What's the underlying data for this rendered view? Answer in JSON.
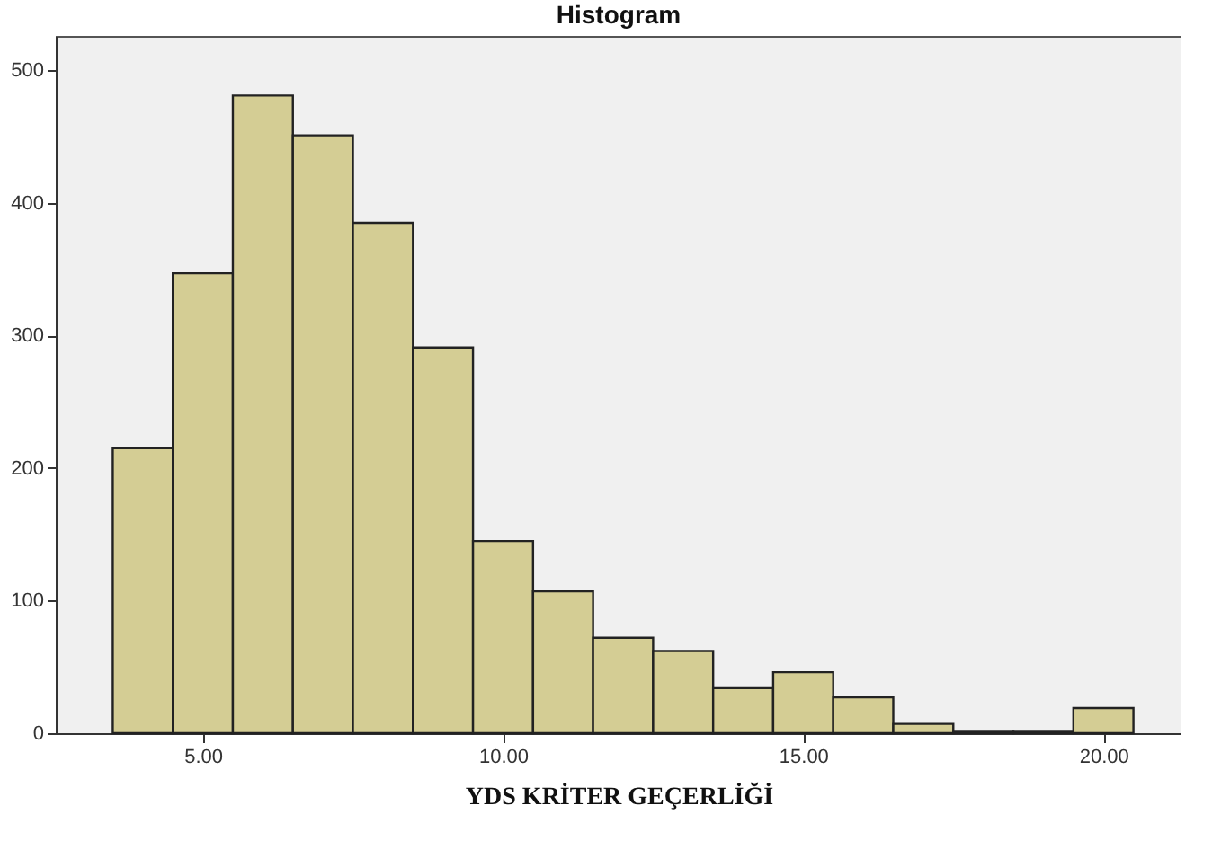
{
  "chart_data": {
    "type": "histogram",
    "title": "Histogram",
    "xlabel": "YDS KRİTER GEÇERLİĞİ",
    "bins": [
      3.5,
      4.5,
      5.5,
      6.5,
      7.5,
      8.5,
      9.5,
      10.5,
      11.5,
      12.5,
      13.5,
      14.5,
      15.5,
      16.5,
      17.5,
      18.5,
      19.5,
      20.5
    ],
    "values": [
      215,
      347,
      481,
      451,
      385,
      291,
      145,
      107,
      72,
      62,
      34,
      46,
      27,
      7,
      1,
      1,
      19
    ],
    "color": "#d4cd94",
    "xlim": [
      2.55,
      21.3
    ],
    "xticks": [
      {
        "value": 5,
        "label": "5.00"
      },
      {
        "value": 10,
        "label": "10.00"
      },
      {
        "value": 15,
        "label": "15.00"
      },
      {
        "value": 20,
        "label": "20.00"
      }
    ],
    "ylim": [
      0,
      526
    ],
    "yticks": [
      0,
      100,
      200,
      300,
      400,
      500
    ],
    "grid": false
  }
}
